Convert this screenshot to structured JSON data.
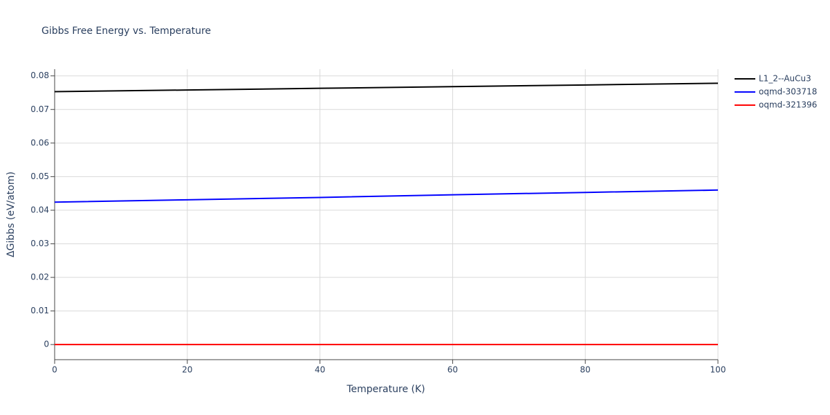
{
  "chart_data": {
    "type": "line",
    "title": "Gibbs Free Energy vs. Temperature",
    "x_label": "Temperature (K)",
    "y_label": "ΔGibbs (eV/atom)",
    "x": [
      0,
      20,
      40,
      60,
      80,
      100
    ],
    "series": [
      {
        "name": "L1_2--AuCu3",
        "color": "#000000",
        "values": [
          0.0753,
          0.0758,
          0.0763,
          0.0768,
          0.0773,
          0.0778
        ]
      },
      {
        "name": "oqmd-303718",
        "color": "#0000ff",
        "values": [
          0.0424,
          0.0431,
          0.0438,
          0.0446,
          0.0453,
          0.046
        ]
      },
      {
        "name": "oqmd-321396",
        "color": "#ff0000",
        "values": [
          0,
          0,
          0,
          0,
          0,
          0
        ]
      }
    ],
    "xlim": [
      0,
      100
    ],
    "xticks": [
      0,
      20,
      40,
      60,
      80,
      100
    ],
    "ylim": [
      -0.0045,
      0.082
    ],
    "yticks": [
      0,
      0.01,
      0.02,
      0.03,
      0.04,
      0.05,
      0.06,
      0.07,
      0.08
    ],
    "grid": true,
    "legend": "outside-right"
  }
}
